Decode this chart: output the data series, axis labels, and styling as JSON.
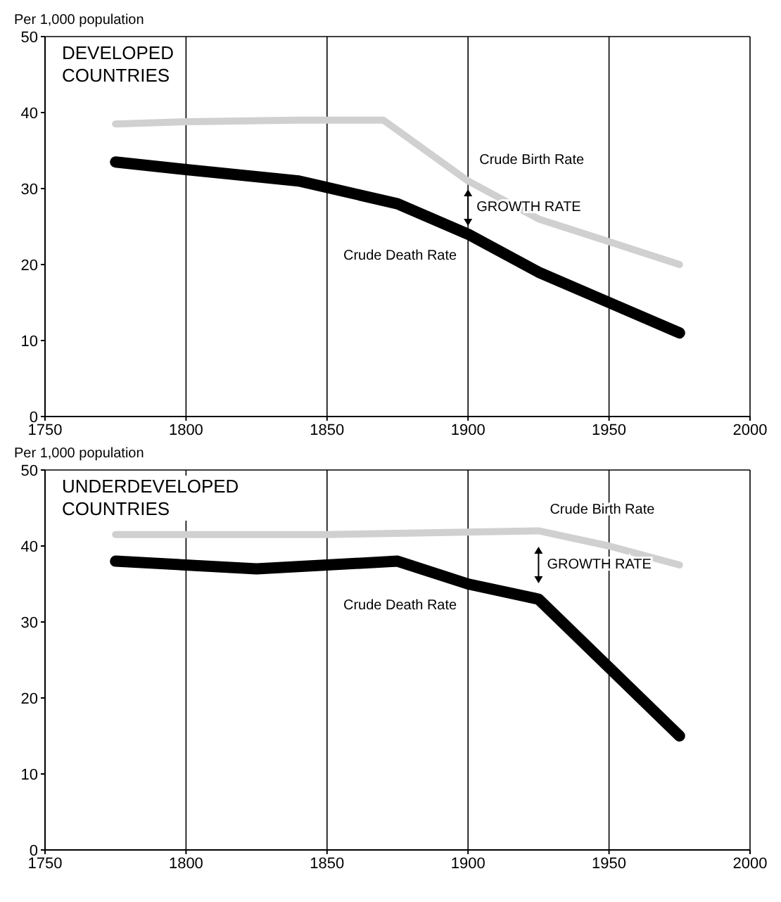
{
  "chart_data": [
    {
      "type": "line",
      "title": "DEVELOPED COUNTRIES",
      "ylabel": "Per 1,000 population",
      "xlim": [
        1750,
        2000
      ],
      "xticks": [
        1750,
        1800,
        1850,
        1900,
        1950,
        2000
      ],
      "ylim": [
        0,
        50
      ],
      "yticks": [
        0,
        10,
        20,
        30,
        40,
        50
      ],
      "grid": true,
      "marker": "none",
      "line_style": "solid",
      "series": [
        {
          "name": "Crude Birth Rate",
          "x": [
            1775,
            1800,
            1840,
            1870,
            1900,
            1925,
            1950,
            1975
          ],
          "values": [
            38.5,
            38.8,
            39,
            39,
            31,
            26,
            23,
            20
          ],
          "color": "#d0d0d0"
        },
        {
          "name": "Crude Death Rate",
          "x": [
            1775,
            1800,
            1840,
            1875,
            1900,
            1925,
            1950,
            1975
          ],
          "values": [
            33.5,
            32.5,
            31,
            28,
            24,
            19,
            15,
            11
          ],
          "color": "#000000"
        }
      ],
      "annotations": [
        "GROWTH RATE"
      ]
    },
    {
      "type": "line",
      "title": "UNDERDEVELOPED COUNTRIES",
      "ylabel": "Per 1,000 population",
      "xlim": [
        1750,
        2000
      ],
      "xticks": [
        1750,
        1800,
        1850,
        1900,
        1950,
        2000
      ],
      "ylim": [
        0,
        50
      ],
      "yticks": [
        0,
        10,
        20,
        30,
        40,
        50
      ],
      "grid": true,
      "marker": "none",
      "line_style": "solid",
      "series": [
        {
          "name": "Crude Birth Rate",
          "x": [
            1775,
            1850,
            1925,
            1950,
            1975
          ],
          "values": [
            41.5,
            41.5,
            42,
            40,
            37.5
          ],
          "color": "#d0d0d0"
        },
        {
          "name": "Crude Death Rate",
          "x": [
            1775,
            1825,
            1875,
            1900,
            1925,
            1950,
            1975
          ],
          "values": [
            38,
            37,
            38,
            35,
            33,
            24,
            15
          ],
          "color": "#000000"
        }
      ],
      "annotations": [
        "GROWTH RATE"
      ]
    }
  ]
}
